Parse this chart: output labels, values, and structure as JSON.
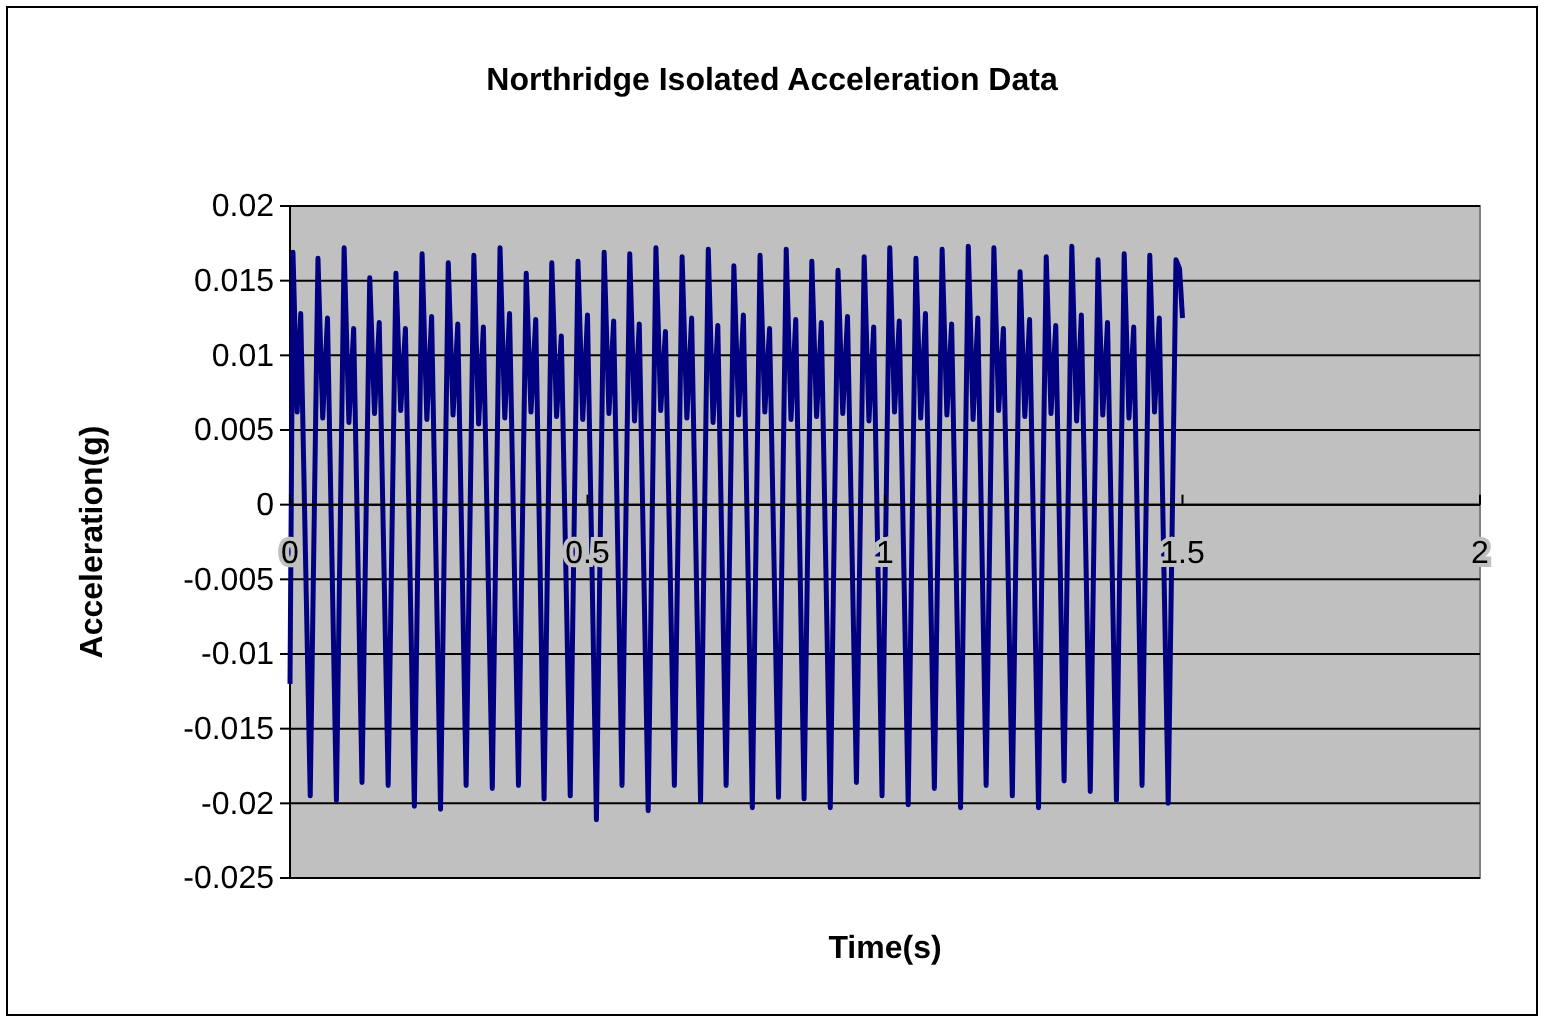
{
  "chart_data": {
    "type": "line",
    "title": "Northridge Isolated Acceleration Data",
    "xlabel": "Time(s)",
    "ylabel": "Acceleration(g)",
    "xlim": [
      0,
      2
    ],
    "xticks": [
      0,
      0.5,
      1,
      1.5,
      2
    ],
    "ylim": [
      -0.025,
      0.02
    ],
    "yticks": [
      -0.025,
      -0.02,
      -0.015,
      -0.01,
      -0.005,
      0,
      0.005,
      0.01,
      0.015,
      0.02
    ],
    "grid": "y",
    "marker": "none",
    "line_style": "solid",
    "series": [
      {
        "color": "#000080",
        "x": [
          0,
          0.005,
          0.012,
          0.018,
          0.034,
          0.047,
          0.055,
          0.063,
          0.078,
          0.091,
          0.099,
          0.107,
          0.121,
          0.134,
          0.142,
          0.15,
          0.165,
          0.178,
          0.186,
          0.194,
          0.209,
          0.222,
          0.23,
          0.238,
          0.253,
          0.266,
          0.274,
          0.282,
          0.296,
          0.309,
          0.317,
          0.325,
          0.34,
          0.353,
          0.361,
          0.369,
          0.384,
          0.397,
          0.405,
          0.413,
          0.427,
          0.44,
          0.448,
          0.456,
          0.471,
          0.484,
          0.492,
          0.5,
          0.515,
          0.528,
          0.536,
          0.544,
          0.558,
          0.571,
          0.579,
          0.587,
          0.602,
          0.615,
          0.623,
          0.631,
          0.646,
          0.659,
          0.667,
          0.675,
          0.69,
          0.703,
          0.711,
          0.719,
          0.733,
          0.746,
          0.754,
          0.762,
          0.777,
          0.79,
          0.798,
          0.806,
          0.821,
          0.834,
          0.842,
          0.85,
          0.864,
          0.877,
          0.885,
          0.893,
          0.908,
          0.921,
          0.929,
          0.937,
          0.952,
          0.965,
          0.973,
          0.981,
          0.995,
          1.008,
          1.016,
          1.024,
          1.039,
          1.052,
          1.06,
          1.068,
          1.083,
          1.096,
          1.104,
          1.112,
          1.127,
          1.14,
          1.148,
          1.156,
          1.17,
          1.183,
          1.191,
          1.199,
          1.214,
          1.227,
          1.235,
          1.243,
          1.258,
          1.271,
          1.279,
          1.287,
          1.301,
          1.314,
          1.322,
          1.33,
          1.345,
          1.358,
          1.366,
          1.374,
          1.389,
          1.402,
          1.41,
          1.418,
          1.432,
          1.445,
          1.453,
          1.461,
          1.476,
          1.489,
          1.495,
          1.5
        ],
        "values": [
          -0.012,
          0.0169,
          0.0062,
          0.0128,
          -0.0195,
          0.0165,
          0.0058,
          0.0125,
          -0.0198,
          0.0172,
          0.0055,
          0.0118,
          -0.0186,
          0.0152,
          0.0061,
          0.0122,
          -0.0188,
          0.0155,
          0.0063,
          0.0118,
          -0.0202,
          0.0168,
          0.0057,
          0.0126,
          -0.0204,
          0.0162,
          0.006,
          0.0121,
          -0.0188,
          0.0167,
          0.0054,
          0.0119,
          -0.019,
          0.0172,
          0.0058,
          0.0128,
          -0.0188,
          0.0155,
          0.0062,
          0.0124,
          -0.0197,
          0.0162,
          0.0059,
          0.0113,
          -0.0195,
          0.0163,
          0.0057,
          0.0127,
          -0.0211,
          0.0169,
          0.0061,
          0.0123,
          -0.0188,
          0.0168,
          0.0056,
          0.0121,
          -0.0205,
          0.0172,
          0.0063,
          0.0116,
          -0.0188,
          0.0166,
          0.0058,
          0.0125,
          -0.0199,
          0.0171,
          0.0055,
          0.012,
          -0.0188,
          0.016,
          0.006,
          0.0127,
          -0.0203,
          0.0167,
          0.0062,
          0.0118,
          -0.0196,
          0.0171,
          0.0057,
          0.0124,
          -0.0197,
          0.0163,
          0.0059,
          0.0122,
          -0.0203,
          0.0157,
          0.0061,
          0.0126,
          -0.0186,
          0.0166,
          0.0056,
          0.0119,
          -0.0195,
          0.0172,
          0.0062,
          0.0123,
          -0.0201,
          0.0165,
          0.0058,
          0.0128,
          -0.019,
          0.0171,
          0.006,
          0.0121,
          -0.0203,
          0.0173,
          0.0057,
          0.0125,
          -0.0188,
          0.0172,
          0.0063,
          0.0118,
          -0.0195,
          0.0156,
          0.0059,
          0.0124,
          -0.0203,
          0.0166,
          0.0061,
          0.012,
          -0.0185,
          0.0173,
          0.0056,
          0.0127,
          -0.0192,
          0.0164,
          0.006,
          0.0122,
          -0.0198,
          0.0168,
          0.0058,
          0.0119,
          -0.0188,
          0.0167,
          0.0062,
          0.0125,
          -0.02,
          0.0164,
          0.0158,
          0.0125
        ]
      }
    ]
  }
}
